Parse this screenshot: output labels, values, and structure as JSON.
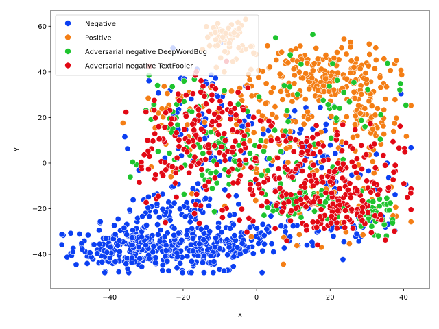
{
  "chart_data": {
    "type": "scatter",
    "title": "",
    "xlabel": "x",
    "ylabel": "y",
    "xlim": [
      -56,
      47
    ],
    "ylim": [
      -55,
      67
    ],
    "xticks": [
      -40,
      -20,
      0,
      20,
      40
    ],
    "yticks": [
      -40,
      -20,
      0,
      20,
      40,
      60
    ],
    "grid": false,
    "legend_position": "top-left",
    "series": [
      {
        "name": "Negative",
        "color": "#0b3ff2",
        "clusters": [
          {
            "cx": -32,
            "cy": -37,
            "sx": 9,
            "sy": 5,
            "n": 260
          },
          {
            "cx": -12,
            "cy": -38,
            "sx": 6,
            "sy": 5,
            "n": 110
          },
          {
            "cx": -24,
            "cy": -22,
            "sx": 7,
            "sy": 4,
            "n": 55
          },
          {
            "cx": 2,
            "cy": -33,
            "sx": 6,
            "sy": 4,
            "n": 50
          },
          {
            "cx": -15,
            "cy": 10,
            "sx": 9,
            "sy": 18,
            "n": 90
          },
          {
            "cx": 15,
            "cy": 0,
            "sx": 12,
            "sy": 15,
            "n": 80
          },
          {
            "cx": 25,
            "cy": -28,
            "sx": 8,
            "sy": 5,
            "n": 40
          }
        ]
      },
      {
        "name": "Positive",
        "color": "#f47e15",
        "clusters": [
          {
            "cx": 18,
            "cy": 38,
            "sx": 9,
            "sy": 7,
            "n": 200
          },
          {
            "cx": -8,
            "cy": 55,
            "sx": 3,
            "sy": 4,
            "n": 60
          },
          {
            "cx": 30,
            "cy": 18,
            "sx": 5,
            "sy": 6,
            "n": 60
          },
          {
            "cx": 5,
            "cy": 15,
            "sx": 10,
            "sy": 12,
            "n": 70
          },
          {
            "cx": 20,
            "cy": -15,
            "sx": 10,
            "sy": 10,
            "n": 60
          },
          {
            "cx": -22,
            "cy": 20,
            "sx": 6,
            "sy": 10,
            "n": 35
          }
        ]
      },
      {
        "name": "Adversarial negative DeepWordBug",
        "color": "#1ec42e",
        "clusters": [
          {
            "cx": 12,
            "cy": -18,
            "sx": 5,
            "sy": 4,
            "n": 55
          },
          {
            "cx": 32,
            "cy": -22,
            "sx": 3,
            "sy": 4,
            "n": 45
          },
          {
            "cx": -8,
            "cy": 0,
            "sx": 10,
            "sy": 10,
            "n": 80
          },
          {
            "cx": 20,
            "cy": 25,
            "sx": 10,
            "sy": 12,
            "n": 40
          },
          {
            "cx": -22,
            "cy": 25,
            "sx": 6,
            "sy": 8,
            "n": 25
          }
        ]
      },
      {
        "name": "Adversarial negative TextFooler",
        "color": "#e20814",
        "clusters": [
          {
            "cx": 15,
            "cy": -8,
            "sx": 12,
            "sy": 12,
            "n": 240
          },
          {
            "cx": -12,
            "cy": 15,
            "sx": 9,
            "sy": 14,
            "n": 140
          },
          {
            "cx": 25,
            "cy": -22,
            "sx": 5,
            "sy": 4,
            "n": 50
          },
          {
            "cx": -25,
            "cy": 0,
            "sx": 5,
            "sy": 8,
            "n": 30
          }
        ]
      }
    ]
  }
}
